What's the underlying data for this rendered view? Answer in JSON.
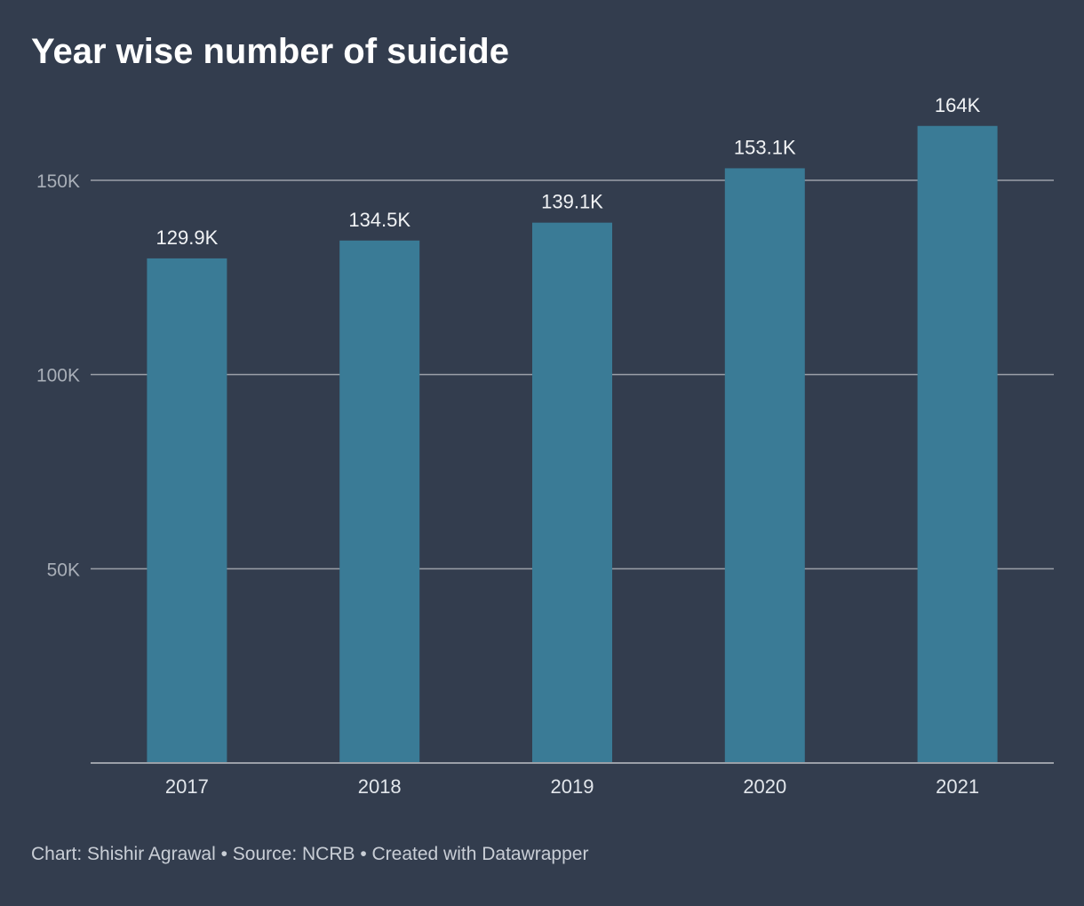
{
  "chart_data": {
    "type": "bar",
    "title": "Year wise number of suicide",
    "categories": [
      "2017",
      "2018",
      "2019",
      "2020",
      "2021"
    ],
    "values": [
      129.9,
      134.5,
      139.1,
      153.1,
      164
    ],
    "data_labels": [
      "129.9K",
      "134.5K",
      "139.1K",
      "153.1K",
      "164K"
    ],
    "value_unit": "thousands",
    "y_ticks": [
      50,
      100,
      150
    ],
    "y_tick_labels": [
      "50K",
      "100K",
      "150K"
    ],
    "ylim": [
      0,
      164
    ],
    "grid": true,
    "xlabel": "",
    "ylabel": "",
    "colors": {
      "bar": "#3a7b96",
      "background": "#333d4e",
      "grid": "#9ba0a8"
    }
  },
  "footer": "Chart: Shishir Agrawal • Source: NCRB • Created with Datawrapper"
}
